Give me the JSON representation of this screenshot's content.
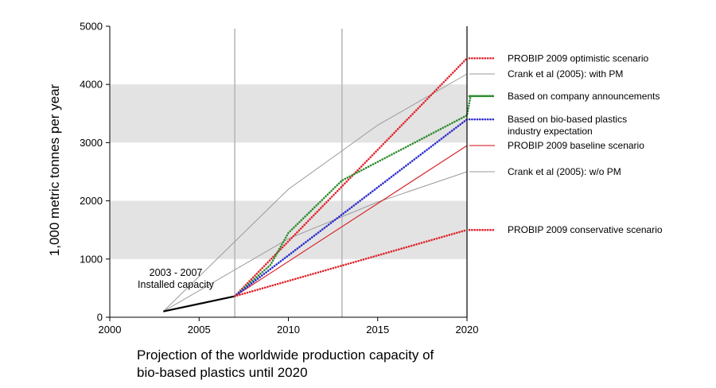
{
  "chart_data": {
    "type": "line",
    "xlim": [
      2000,
      2020
    ],
    "ylim": [
      0,
      5000
    ],
    "xticks": [
      "2000",
      "2005",
      "2010",
      "2015",
      "2020"
    ],
    "yticks": [
      "0",
      "1000",
      "2000",
      "3000",
      "4000",
      "5000"
    ],
    "ylabel": "1,000 metric tonnes per year",
    "xlabel_lines": [
      "Projection of the worldwide production capacity of",
      "bio-based plastics until 2020"
    ],
    "shaded_bands": [
      [
        1000,
        2000
      ],
      [
        3000,
        4000
      ]
    ],
    "vertical_lines": [
      2007,
      2013
    ],
    "annotation_lines": [
      "2003 - 2007",
      "Installed capacity"
    ],
    "series": [
      {
        "name": "PROBIP 2009 optimistic scenario",
        "style": "dotted",
        "color": "#e0242c",
        "points": [
          [
            2007,
            360
          ],
          [
            2020,
            4450
          ]
        ],
        "legend_y": 4450
      },
      {
        "name": "Crank et al (2005): with PM",
        "style": "solid-thin",
        "color": "#9a9a9a",
        "points": [
          [
            2003,
            100
          ],
          [
            2010,
            2200
          ],
          [
            2015,
            3300
          ],
          [
            2020,
            4180
          ]
        ],
        "legend_y": 4180
      },
      {
        "name": "Based on company announcements",
        "style": "dotted",
        "color": "#2e8b2e",
        "points": [
          [
            2007,
            360
          ],
          [
            2009,
            900
          ],
          [
            2010,
            1450
          ],
          [
            2013,
            2350
          ],
          [
            2020,
            3470
          ],
          [
            2020.2,
            3800
          ],
          [
            2021.5,
            3800
          ]
        ],
        "legend_y": 3800
      },
      {
        "name": "Based on bio-based plastics industry expectation",
        "style": "dotted",
        "color": "#2a2acc",
        "points": [
          [
            2007,
            360
          ],
          [
            2020,
            3400
          ]
        ],
        "legend_y": 3400
      },
      {
        "name": "PROBIP 2009 baseline scenario",
        "style": "solid",
        "color": "#d8262c",
        "points": [
          [
            2007,
            360
          ],
          [
            2020,
            2950
          ]
        ],
        "legend_y": 2950
      },
      {
        "name": "Crank et al (2005): w/o PM",
        "style": "solid-thin",
        "color": "#9a9a9a",
        "points": [
          [
            2003,
            100
          ],
          [
            2010,
            1350
          ],
          [
            2015,
            1980
          ],
          [
            2020,
            2500
          ]
        ],
        "legend_y": 2500
      },
      {
        "name": "PROBIP 2009 conservative scenario",
        "style": "dotted",
        "color": "#e0242c",
        "points": [
          [
            2007,
            360
          ],
          [
            2020,
            1500
          ]
        ],
        "legend_y": 1500
      },
      {
        "name": "Installed capacity 2003 - 2007",
        "style": "solid-thick",
        "color": "#000000",
        "points": [
          [
            2003,
            100
          ],
          [
            2007,
            360
          ]
        ],
        "legend_y": null
      }
    ],
    "legend_entries": [
      {
        "lines": [
          "PROBIP 2009 optimistic scenario"
        ],
        "y": 4450,
        "color": "#e0242c",
        "style": "dotted"
      },
      {
        "lines": [
          "Crank et al (2005): with PM"
        ],
        "y": 4180,
        "color": "#9a9a9a",
        "style": "solid-thin"
      },
      {
        "lines": [
          "Based on company announcements"
        ],
        "y": 3800,
        "color": "#2e8b2e",
        "style": "dotted"
      },
      {
        "lines": [
          "Based on bio-based plastics",
          "industry expectation"
        ],
        "y": 3400,
        "color": "#2a2acc",
        "style": "dotted"
      },
      {
        "lines": [
          "PROBIP 2009 baseline scenario"
        ],
        "y": 2950,
        "color": "#d8262c",
        "style": "solid"
      },
      {
        "lines": [
          "Crank et al (2005): w/o PM"
        ],
        "y": 2500,
        "color": "#9a9a9a",
        "style": "solid-thin"
      },
      {
        "lines": [
          "PROBIP 2009 conservative scenario"
        ],
        "y": 1500,
        "color": "#e0242c",
        "style": "dotted"
      }
    ]
  }
}
